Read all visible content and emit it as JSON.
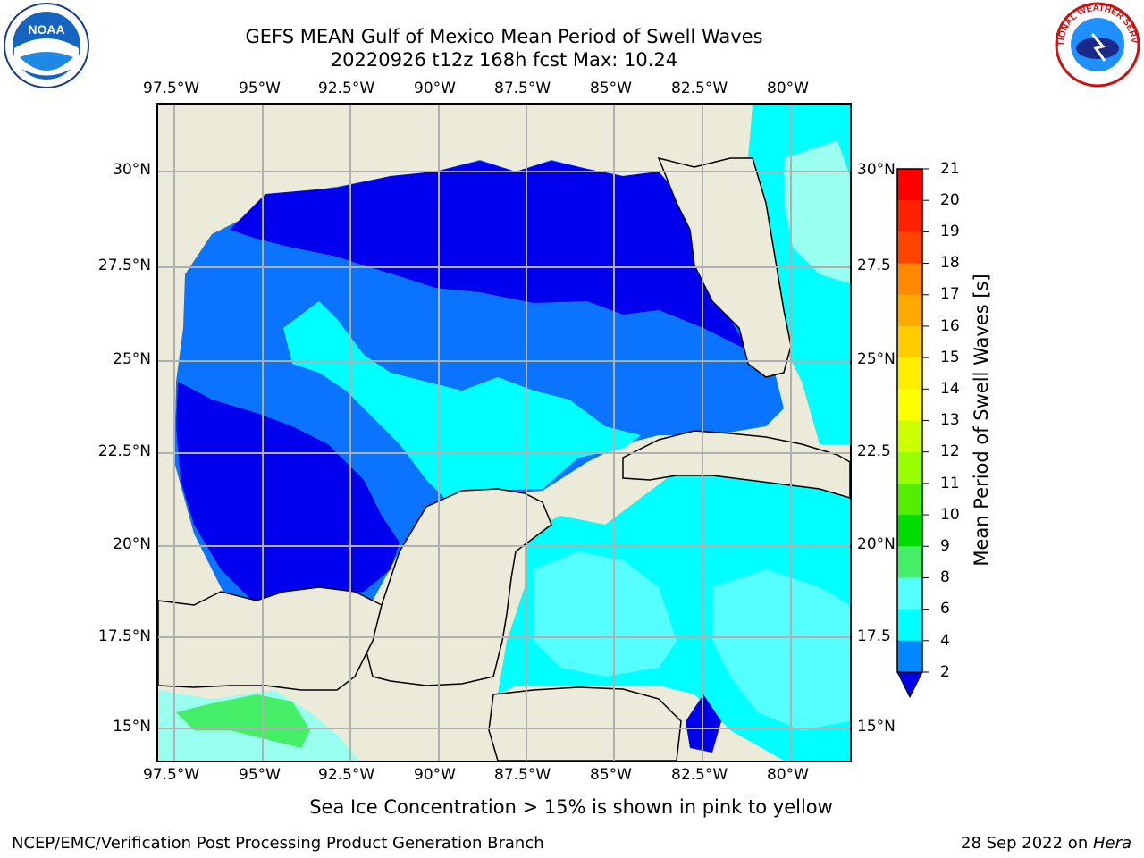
{
  "title": {
    "line1": "GEFS MEAN Gulf of Mexico Mean Period of Swell Waves",
    "line2": "20220926 t12z 168h fcst   Max: 10.24"
  },
  "map": {
    "lon_labels": [
      "97.5°W",
      "95°W",
      "92.5°W",
      "90°W",
      "87.5°W",
      "85°W",
      "82.5°W",
      "80°W"
    ],
    "lat_labels_left": [
      "30°N",
      "27.5°N",
      "25°N",
      "22.5°N",
      "20°N",
      "17.5°N",
      "15°N"
    ],
    "lat_labels_right": [
      "30°N",
      "27.5",
      "25°N",
      "22.5",
      "20°N",
      "17.5",
      "15°N"
    ],
    "land_color": "#ecead9",
    "grid_color": "#b0b0b0"
  },
  "colorbar": {
    "label": "Mean Period of Swell Waves [s]",
    "ticks": [
      "21",
      "20",
      "19",
      "18",
      "17",
      "16",
      "15",
      "14",
      "13",
      "12",
      "11",
      "10",
      "9",
      "8",
      "6",
      "4",
      "2"
    ],
    "colors": [
      "#ff0000",
      "#ff2200",
      "#ff4400",
      "#ff6600",
      "#ff8800",
      "#ffaa00",
      "#ffcc00",
      "#ffee00",
      "#ffff00",
      "#eeff00",
      "#ccff00",
      "#99ff00",
      "#55ee00",
      "#00dd00",
      "#44ee66",
      "#99ffee",
      "#55ffff",
      "#00ffff",
      "#0088ff"
    ],
    "under_color": "#0000ee"
  },
  "note": "Sea Ice Concentration > 15% is shown in pink to yellow",
  "footer": {
    "left": "NCEP/EMC/Verification Post Processing Product Generation Branch",
    "right_date": "28 Sep 2022 on ",
    "right_machine": "Hera"
  },
  "logos": {
    "left_icon": "noaa-logo",
    "right_icon": "nws-logo",
    "noaa_text": "NOAA",
    "nws_text": "NATIONAL WEATHER SERVICE"
  }
}
